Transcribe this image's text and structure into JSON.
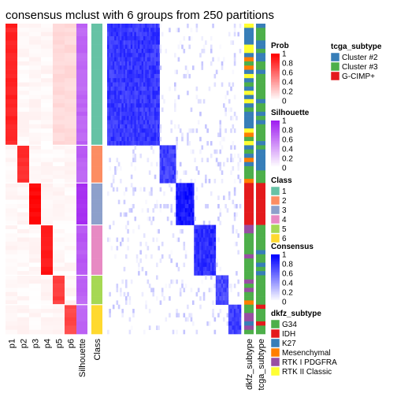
{
  "chart_data": {
    "type": "heatmap",
    "title": "consensus mclust with 6 groups from 250 partitions",
    "columns": {
      "prob_labels": [
        "p1",
        "p2",
        "p3",
        "p4",
        "p5",
        "p6"
      ],
      "silhouette_label": "Silhouette",
      "class_label": "Class",
      "dkfz_label": "dkfz_subtype",
      "tcga_label": "tcga_subtype"
    },
    "class_colors": {
      "1": "#66C2A5",
      "2": "#FC8D62",
      "3": "#8DA0CB",
      "4": "#E78AC3",
      "5": "#A6D854",
      "6": "#FFD92F"
    },
    "groups": [
      {
        "class": "1",
        "size": 29,
        "prob_main": 0.9,
        "silhouette": 0.74,
        "consensus_in": 0.88
      },
      {
        "class": "2",
        "size": 9,
        "prob_main": 0.85,
        "silhouette": 0.76,
        "consensus_in": 0.85
      },
      {
        "class": "3",
        "size": 10,
        "prob_main": 1.0,
        "silhouette": 0.97,
        "consensus_in": 1.0
      },
      {
        "class": "4",
        "size": 12,
        "prob_main": 0.95,
        "silhouette": 0.8,
        "consensus_in": 0.92
      },
      {
        "class": "5",
        "size": 7,
        "prob_main": 0.8,
        "silhouette": 0.74,
        "consensus_in": 0.82
      },
      {
        "class": "6",
        "size": 7,
        "prob_main": 0.75,
        "silhouette": 0.72,
        "consensus_in": 0.85
      }
    ],
    "legends": {
      "prob": {
        "title": "Prob",
        "ticks": [
          "1",
          "0.8",
          "0.6",
          "0.4",
          "0.2",
          "0"
        ],
        "high_color": "#FF0000"
      },
      "silhouette": {
        "title": "Silhouette",
        "ticks": [
          "1",
          "0.8",
          "0.6",
          "0.4",
          "0.2",
          "0"
        ],
        "high_color": "#A020F0"
      },
      "class": {
        "title": "Class",
        "entries": [
          "1",
          "2",
          "3",
          "4",
          "5",
          "6"
        ]
      },
      "consensus": {
        "title": "Consensus",
        "ticks": [
          "1",
          "0.8",
          "0.6",
          "0.4",
          "0.2",
          "0"
        ],
        "high_color": "#0000FF"
      },
      "dkfz_subtype": {
        "title": "dkfz_subtype",
        "entries": [
          {
            "label": "G34",
            "color": "#4DAF4A"
          },
          {
            "label": "IDH",
            "color": "#E41A1C"
          },
          {
            "label": "K27",
            "color": "#377EB8"
          },
          {
            "label": "Mesenchymal",
            "color": "#FF7F00"
          },
          {
            "label": "RTK I PDGFRA",
            "color": "#984EA3"
          },
          {
            "label": "RTK II Classic",
            "color": "#FFFF33"
          }
        ]
      },
      "tcga_subtype": {
        "title": "tcga_subtype",
        "entries": [
          {
            "label": "Cluster #2",
            "color": "#377EB8"
          },
          {
            "label": "Cluster #3",
            "color": "#4DAF4A"
          },
          {
            "label": "G-CIMP+",
            "color": "#E41A1C"
          }
        ]
      }
    }
  }
}
